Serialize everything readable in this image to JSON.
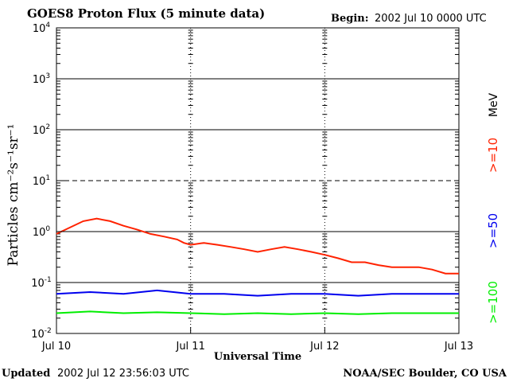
{
  "header": {
    "title": "GOES8 Proton Flux (5 minute data)",
    "begin_label": "Begin:",
    "begin_value": "2002 Jul 10 0000 UTC"
  },
  "footer": {
    "updated_label": "Updated",
    "updated_value": "2002 Jul 12 23:56:03 UTC",
    "credit": "NOAA/SEC Boulder, CO USA"
  },
  "chart_data": {
    "type": "line",
    "title": "GOES8 Proton Flux (5 minute data)",
    "xlabel": "Universal Time",
    "ylabel": "Particles cm⁻²s⁻¹sr⁻¹",
    "yscale": "log",
    "ylim": [
      0.01,
      10000
    ],
    "ytick_labels": [
      {
        "base": "10",
        "exp": "-2"
      },
      {
        "base": "10",
        "exp": "-1"
      },
      {
        "base": "10",
        "exp": "0"
      },
      {
        "base": "10",
        "exp": "1"
      },
      {
        "base": "10",
        "exp": "2"
      },
      {
        "base": "10",
        "exp": "3"
      },
      {
        "base": "10",
        "exp": "4"
      }
    ],
    "x_ticks": [
      "Jul 10",
      "Jul 11",
      "Jul 12",
      "Jul 13"
    ],
    "xlim_days": [
      0,
      3
    ],
    "legend_position": "right",
    "legend_unit": "MeV",
    "grid": {
      "solid": [
        1,
        100,
        1000
      ],
      "dashed": [
        10
      ],
      "threshold": 0.1
    },
    "series": [
      {
        "name": ">=10",
        "color": "#ff2200",
        "x": [
          0.0,
          0.1,
          0.2,
          0.3,
          0.4,
          0.5,
          0.6,
          0.7,
          0.8,
          0.9,
          0.95,
          1.0,
          1.1,
          1.2,
          1.3,
          1.4,
          1.5,
          1.6,
          1.7,
          1.8,
          1.9,
          2.0,
          2.1,
          2.2,
          2.3,
          2.4,
          2.5,
          2.6,
          2.7,
          2.8,
          2.9,
          3.0
        ],
        "values": [
          0.9,
          1.2,
          1.6,
          1.8,
          1.6,
          1.3,
          1.1,
          0.9,
          0.8,
          0.7,
          0.6,
          0.55,
          0.6,
          0.55,
          0.5,
          0.45,
          0.4,
          0.45,
          0.5,
          0.45,
          0.4,
          0.35,
          0.3,
          0.25,
          0.25,
          0.22,
          0.2,
          0.2,
          0.2,
          0.18,
          0.15,
          0.15
        ]
      },
      {
        "name": ">=50",
        "color": "#0000ee",
        "x": [
          0.0,
          0.25,
          0.5,
          0.75,
          1.0,
          1.25,
          1.5,
          1.75,
          2.0,
          2.25,
          2.5,
          2.75,
          3.0
        ],
        "values": [
          0.06,
          0.065,
          0.06,
          0.07,
          0.06,
          0.06,
          0.055,
          0.06,
          0.06,
          0.055,
          0.06,
          0.06,
          0.06
        ]
      },
      {
        "name": ">=100",
        "color": "#00ee00",
        "x": [
          0.0,
          0.25,
          0.5,
          0.75,
          1.0,
          1.25,
          1.5,
          1.75,
          2.0,
          2.25,
          2.5,
          2.75,
          3.0
        ],
        "values": [
          0.025,
          0.027,
          0.025,
          0.026,
          0.025,
          0.024,
          0.025,
          0.024,
          0.025,
          0.024,
          0.025,
          0.025,
          0.025
        ]
      }
    ]
  }
}
